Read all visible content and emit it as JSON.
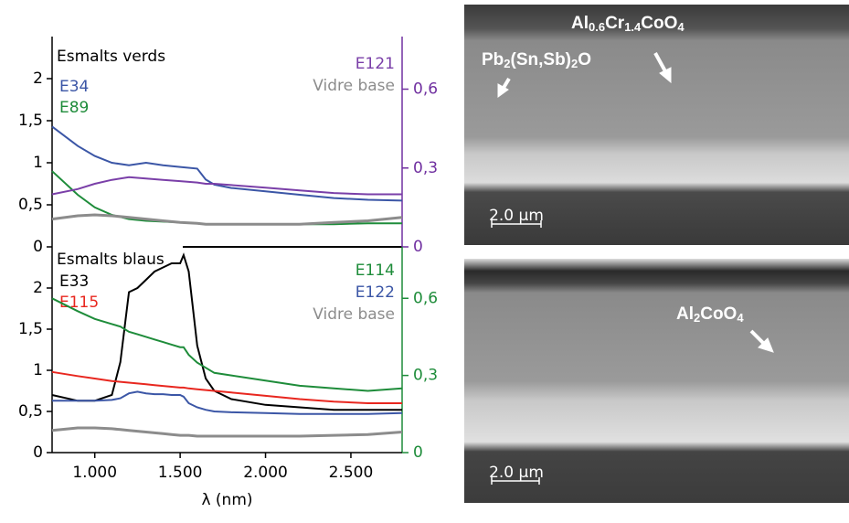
{
  "chart_data": [
    {
      "type": "line",
      "title": "Esmalts verds",
      "x": [
        750,
        900,
        1000,
        1100,
        1200,
        1300,
        1400,
        1500,
        1600,
        1650,
        1700,
        1800,
        2000,
        2200,
        2400,
        2600,
        2800
      ],
      "xlim": [
        750,
        2800
      ],
      "ylim": [
        0,
        2.5
      ],
      "y2lim": [
        0,
        0.8
      ],
      "yticks": [
        0,
        {
          "value": 0.5,
          "label": "0,5"
        },
        1,
        {
          "value": 1.5,
          "label": "1,5"
        },
        2
      ],
      "y2ticks": [
        0,
        {
          "value": 0.3,
          "label": "0,3"
        },
        {
          "value": 0.6,
          "label": "0,6"
        }
      ],
      "y2color": "#7030a0",
      "series": [
        {
          "name": "E34",
          "color": "#3b56a6",
          "values": [
            1.43,
            1.2,
            1.08,
            1.0,
            0.97,
            1.0,
            0.97,
            0.95,
            0.93,
            0.8,
            0.74,
            0.7,
            0.66,
            0.62,
            0.58,
            0.56,
            0.55
          ]
        },
        {
          "name": "E89",
          "color": "#1e8c3a",
          "values": [
            0.9,
            0.62,
            0.47,
            0.38,
            0.33,
            0.31,
            0.3,
            0.29,
            0.28,
            0.27,
            0.27,
            0.27,
            0.27,
            0.27,
            0.27,
            0.28,
            0.28
          ]
        },
        {
          "name": "E121",
          "color": "#7a3fa8",
          "axis": "y2",
          "values": [
            0.2,
            0.22,
            0.24,
            0.255,
            0.265,
            0.26,
            0.255,
            0.25,
            0.245,
            0.24,
            0.24,
            0.235,
            0.225,
            0.215,
            0.205,
            0.2,
            0.2
          ]
        },
        {
          "name": "Vidre base",
          "color": "#8c8c8c",
          "values": [
            0.33,
            0.37,
            0.38,
            0.37,
            0.35,
            0.33,
            0.31,
            0.29,
            0.28,
            0.27,
            0.27,
            0.27,
            0.27,
            0.27,
            0.29,
            0.31,
            0.35
          ]
        }
      ]
    },
    {
      "type": "line",
      "title": "Esmalts blaus",
      "xlabel": "λ (nm)",
      "x": [
        750,
        900,
        1000,
        1100,
        1150,
        1200,
        1250,
        1300,
        1350,
        1400,
        1450,
        1500,
        1520,
        1550,
        1600,
        1650,
        1700,
        1800,
        2000,
        2200,
        2400,
        2600,
        2800
      ],
      "xlim": [
        750,
        2800
      ],
      "ylim": [
        0,
        2.5
      ],
      "y2lim": [
        0,
        0.8
      ],
      "xticks": [
        {
          "value": 1000,
          "label": "1.000"
        },
        {
          "value": 1500,
          "label": "1.500"
        },
        {
          "value": 2000,
          "label": "2.000"
        },
        {
          "value": 2500,
          "label": "2.500"
        }
      ],
      "yticks": [
        0,
        {
          "value": 0.5,
          "label": "0,5"
        },
        1,
        {
          "value": 1.5,
          "label": "1,5"
        },
        2
      ],
      "y2ticks": [
        0,
        {
          "value": 0.3,
          "label": "0,3"
        },
        {
          "value": 0.6,
          "label": "0,6"
        }
      ],
      "y2color": "#1e8c3a",
      "series": [
        {
          "name": "E33",
          "color": "#000000",
          "values": [
            0.7,
            0.63,
            0.63,
            0.7,
            1.1,
            1.95,
            2.0,
            2.1,
            2.2,
            2.25,
            2.3,
            2.3,
            2.4,
            2.2,
            1.3,
            0.9,
            0.75,
            0.65,
            0.58,
            0.55,
            0.52,
            0.52,
            0.52
          ]
        },
        {
          "name": "E115",
          "color": "#e8271f",
          "values": [
            0.98,
            0.93,
            0.9,
            0.87,
            0.86,
            0.85,
            0.84,
            0.83,
            0.82,
            0.81,
            0.8,
            0.79,
            0.79,
            0.78,
            0.77,
            0.76,
            0.75,
            0.73,
            0.69,
            0.65,
            0.62,
            0.6,
            0.6
          ]
        },
        {
          "name": "E114",
          "color": "#1e8c3a",
          "axis": "y2",
          "values": [
            0.6,
            0.55,
            0.52,
            0.5,
            0.49,
            0.47,
            0.46,
            0.45,
            0.44,
            0.43,
            0.42,
            0.41,
            0.41,
            0.38,
            0.35,
            0.33,
            0.31,
            0.3,
            0.28,
            0.26,
            0.25,
            0.24,
            0.25
          ]
        },
        {
          "name": "E122",
          "color": "#3b56a6",
          "values": [
            0.63,
            0.63,
            0.63,
            0.64,
            0.66,
            0.72,
            0.74,
            0.72,
            0.71,
            0.71,
            0.7,
            0.7,
            0.68,
            0.6,
            0.55,
            0.52,
            0.5,
            0.49,
            0.48,
            0.47,
            0.47,
            0.47,
            0.48
          ]
        },
        {
          "name": "Vidre base",
          "color": "#8c8c8c",
          "values": [
            0.27,
            0.3,
            0.3,
            0.29,
            0.28,
            0.27,
            0.26,
            0.25,
            0.24,
            0.23,
            0.22,
            0.21,
            0.21,
            0.21,
            0.2,
            0.2,
            0.2,
            0.2,
            0.2,
            0.2,
            0.21,
            0.22,
            0.25
          ]
        }
      ]
    }
  ],
  "images": [
    {
      "scale_bar": "2.0 µm",
      "labels": [
        {
          "parts": [
            "Al",
            "0.6",
            "Cr",
            "1.4",
            "CoO",
            "4"
          ]
        },
        {
          "parts": [
            "Pb",
            "2",
            "(Sn,Sb)",
            "2",
            "O"
          ]
        }
      ]
    },
    {
      "scale_bar": "2.0 µm",
      "labels": [
        {
          "parts": [
            "Al",
            "2",
            "CoO",
            "4"
          ]
        }
      ]
    }
  ]
}
